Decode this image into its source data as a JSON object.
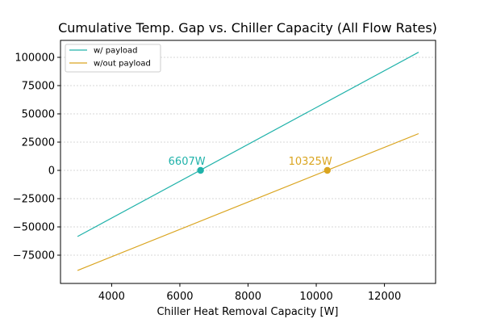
{
  "chart_data": {
    "type": "line",
    "title": "Cumulative Temp. Gap vs. Chiller Capacity (All Flow Rates)",
    "xlabel": "Chiller Heat Removal Capacity [W]",
    "ylabel": "",
    "xlim": [
      2500,
      13500
    ],
    "ylim": [
      -100000,
      115000
    ],
    "xticks": [
      4000,
      6000,
      8000,
      10000,
      12000
    ],
    "yticks": [
      -75000,
      -50000,
      -25000,
      0,
      25000,
      50000,
      75000,
      100000
    ],
    "grid": "y-dotted",
    "legend": "top-left",
    "series": [
      {
        "name": "w/ payload",
        "color": "#20b2aa",
        "x": [
          3000,
          13000
        ],
        "y": [
          -58500,
          104500
        ],
        "marker": {
          "x": 6607,
          "y": 0,
          "label": "6607W"
        }
      },
      {
        "name": "w/out payload",
        "color": "#daa520",
        "x": [
          3000,
          13000
        ],
        "y": [
          -88500,
          32500
        ],
        "marker": {
          "x": 10325,
          "y": 0,
          "label": "10325W"
        }
      }
    ]
  }
}
